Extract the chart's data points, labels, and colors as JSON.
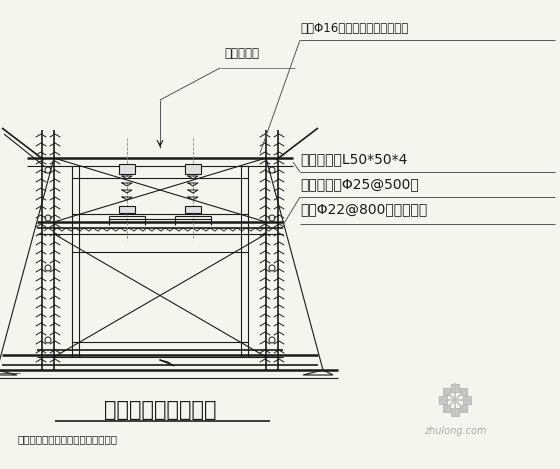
{
  "bg_color": "#f5f5f0",
  "line_color": "#1a1a1a",
  "title": "单组螺栓安装示意图",
  "subtitle": "无误后将螺栓与下面钢筋焊接牢固。",
  "label1": "线架Φ16，高度为螺顶施工标高",
  "label2": "螺丝中心线",
  "label3": "夹螺杆角钢L50*50*4",
  "label4": "立杆、平杆Φ25@500，",
  "label5": "斜撑Φ22@800（四边同）",
  "watermark_text": "zhulong.com",
  "fig_width": 5.6,
  "fig_height": 4.69,
  "dpi": 100
}
